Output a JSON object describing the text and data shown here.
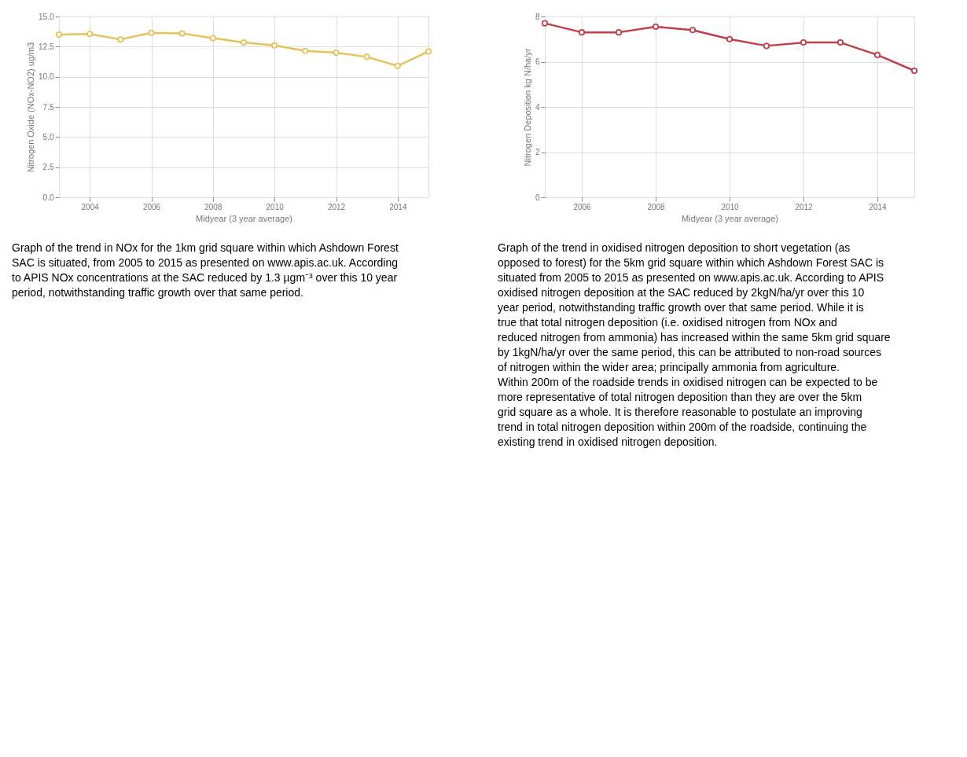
{
  "chart_data": [
    {
      "type": "line",
      "xlabel": "Midyear (3 year average)",
      "ylabel": "Nitrogen Oxide (NOx-NO2) ug/m3",
      "x": [
        2003,
        2004,
        2005,
        2006,
        2007,
        2008,
        2009,
        2010,
        2011,
        2012,
        2013,
        2014,
        2015
      ],
      "series": [
        {
          "color": "#e6c25a",
          "values": [
            13.5,
            13.55,
            13.1,
            13.65,
            13.6,
            13.2,
            12.85,
            12.6,
            12.15,
            12.0,
            11.65,
            10.9,
            12.1
          ]
        }
      ],
      "xlim": [
        2003,
        2015
      ],
      "xticks": [
        2004,
        2006,
        2008,
        2010,
        2012,
        2014
      ],
      "ylim": [
        0,
        15
      ],
      "yticks": [
        {
          "value": 0,
          "label": "0.0"
        },
        2.5,
        {
          "value": 5,
          "label": "5.0"
        },
        7.5,
        {
          "value": 10,
          "label": "10.0"
        },
        12.5,
        {
          "value": 15,
          "label": "15.0"
        }
      ],
      "grid": true,
      "marker": "circle",
      "line_style": "solid",
      "annotations": [
        "Graph of the trend in NOx for the 1km grid square within which Ashdown Forest SAC is situated, from 2005 to 2015 as presented on www.apis.ac.uk. According to APIS NOx concentrations at the SAC reduced by 1.3 µgm⁻³ over this 10 year period, notwithstanding traffic growth over that same period."
      ]
    },
    {
      "type": "line",
      "xlabel": "Midyear (3 year average)",
      "ylabel": "Nitrogen Deposition kg N/ha/yr",
      "x": [
        2005,
        2006,
        2007,
        2008,
        2009,
        2010,
        2011,
        2012,
        2013,
        2014,
        2015
      ],
      "series": [
        {
          "color": "#c0404a",
          "values": [
            7.7,
            7.3,
            7.3,
            7.55,
            7.4,
            7.0,
            6.7,
            6.85,
            6.85,
            6.3,
            5.6
          ]
        }
      ],
      "xlim": [
        2005,
        2015
      ],
      "xticks": [
        2006,
        2008,
        2010,
        2012,
        2014
      ],
      "ylim": [
        0,
        8
      ],
      "yticks": [
        0,
        2,
        4,
        6,
        8
      ],
      "grid": true,
      "marker": "circle",
      "line_style": "solid",
      "annotations": [
        "Graph of the trend in oxidised nitrogen deposition to short vegetation (as opposed to forest) for the 5km grid square within which Ashdown Forest SAC is situated from 2005 to 2015 as presented on www.apis.ac.uk. According to APIS oxidised nitrogen deposition at the SAC reduced by 2kgN/ha/yr over this 10 year period, notwithstanding traffic growth over that same period. While it is true that total nitrogen deposition (i.e. oxidised nitrogen from NOx and reduced nitrogen from ammonia) has increased within the same 5km grid square by 1kgN/ha/yr over the same period, this can be attributed to non-road sources of nitrogen within the wider area; principally ammonia from agriculture. Within 200m of the roadside trends in oxidised nitrogen can be expected to be more representative of total nitrogen deposition than they are over the 5km grid square as a whole. It is therefore reasonable to postulate an improving trend in total nitrogen deposition within 200m of the roadside, continuing the existing trend in oxidised nitrogen deposition."
      ]
    }
  ]
}
